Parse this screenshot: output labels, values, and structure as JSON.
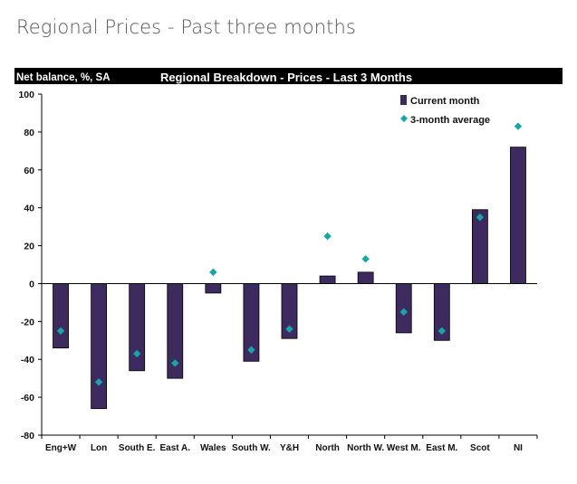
{
  "page": {
    "title": "Regional Prices - Past three months"
  },
  "chart_data": {
    "type": "bar",
    "title": "Regional Breakdown - Prices - Last 3 Months",
    "ylabel": "Net balance, %, SA",
    "ylim": [
      -80,
      100
    ],
    "yticks": [
      100,
      80,
      60,
      40,
      20,
      0,
      -20,
      -40,
      -60,
      -80
    ],
    "categories": [
      "Eng+W",
      "Lon",
      "South E.",
      "East A.",
      "Wales",
      "South W.",
      "Y&H",
      "North",
      "North W.",
      "West M.",
      "East M.",
      "Scot",
      "NI"
    ],
    "series": [
      {
        "name": "Current month",
        "kind": "bar",
        "color": "#3d2a5e",
        "values": [
          -34,
          -66,
          -46,
          -50,
          -5,
          -41,
          -29,
          4,
          6,
          -26,
          -30,
          39,
          72
        ]
      },
      {
        "name": "3-month average",
        "kind": "marker",
        "color": "#17a6a6",
        "values": [
          -25,
          -52,
          -37,
          -42,
          6,
          -35,
          -24,
          25,
          13,
          -15,
          -25,
          35,
          83
        ]
      }
    ],
    "grid": false,
    "legend": "top-right"
  }
}
